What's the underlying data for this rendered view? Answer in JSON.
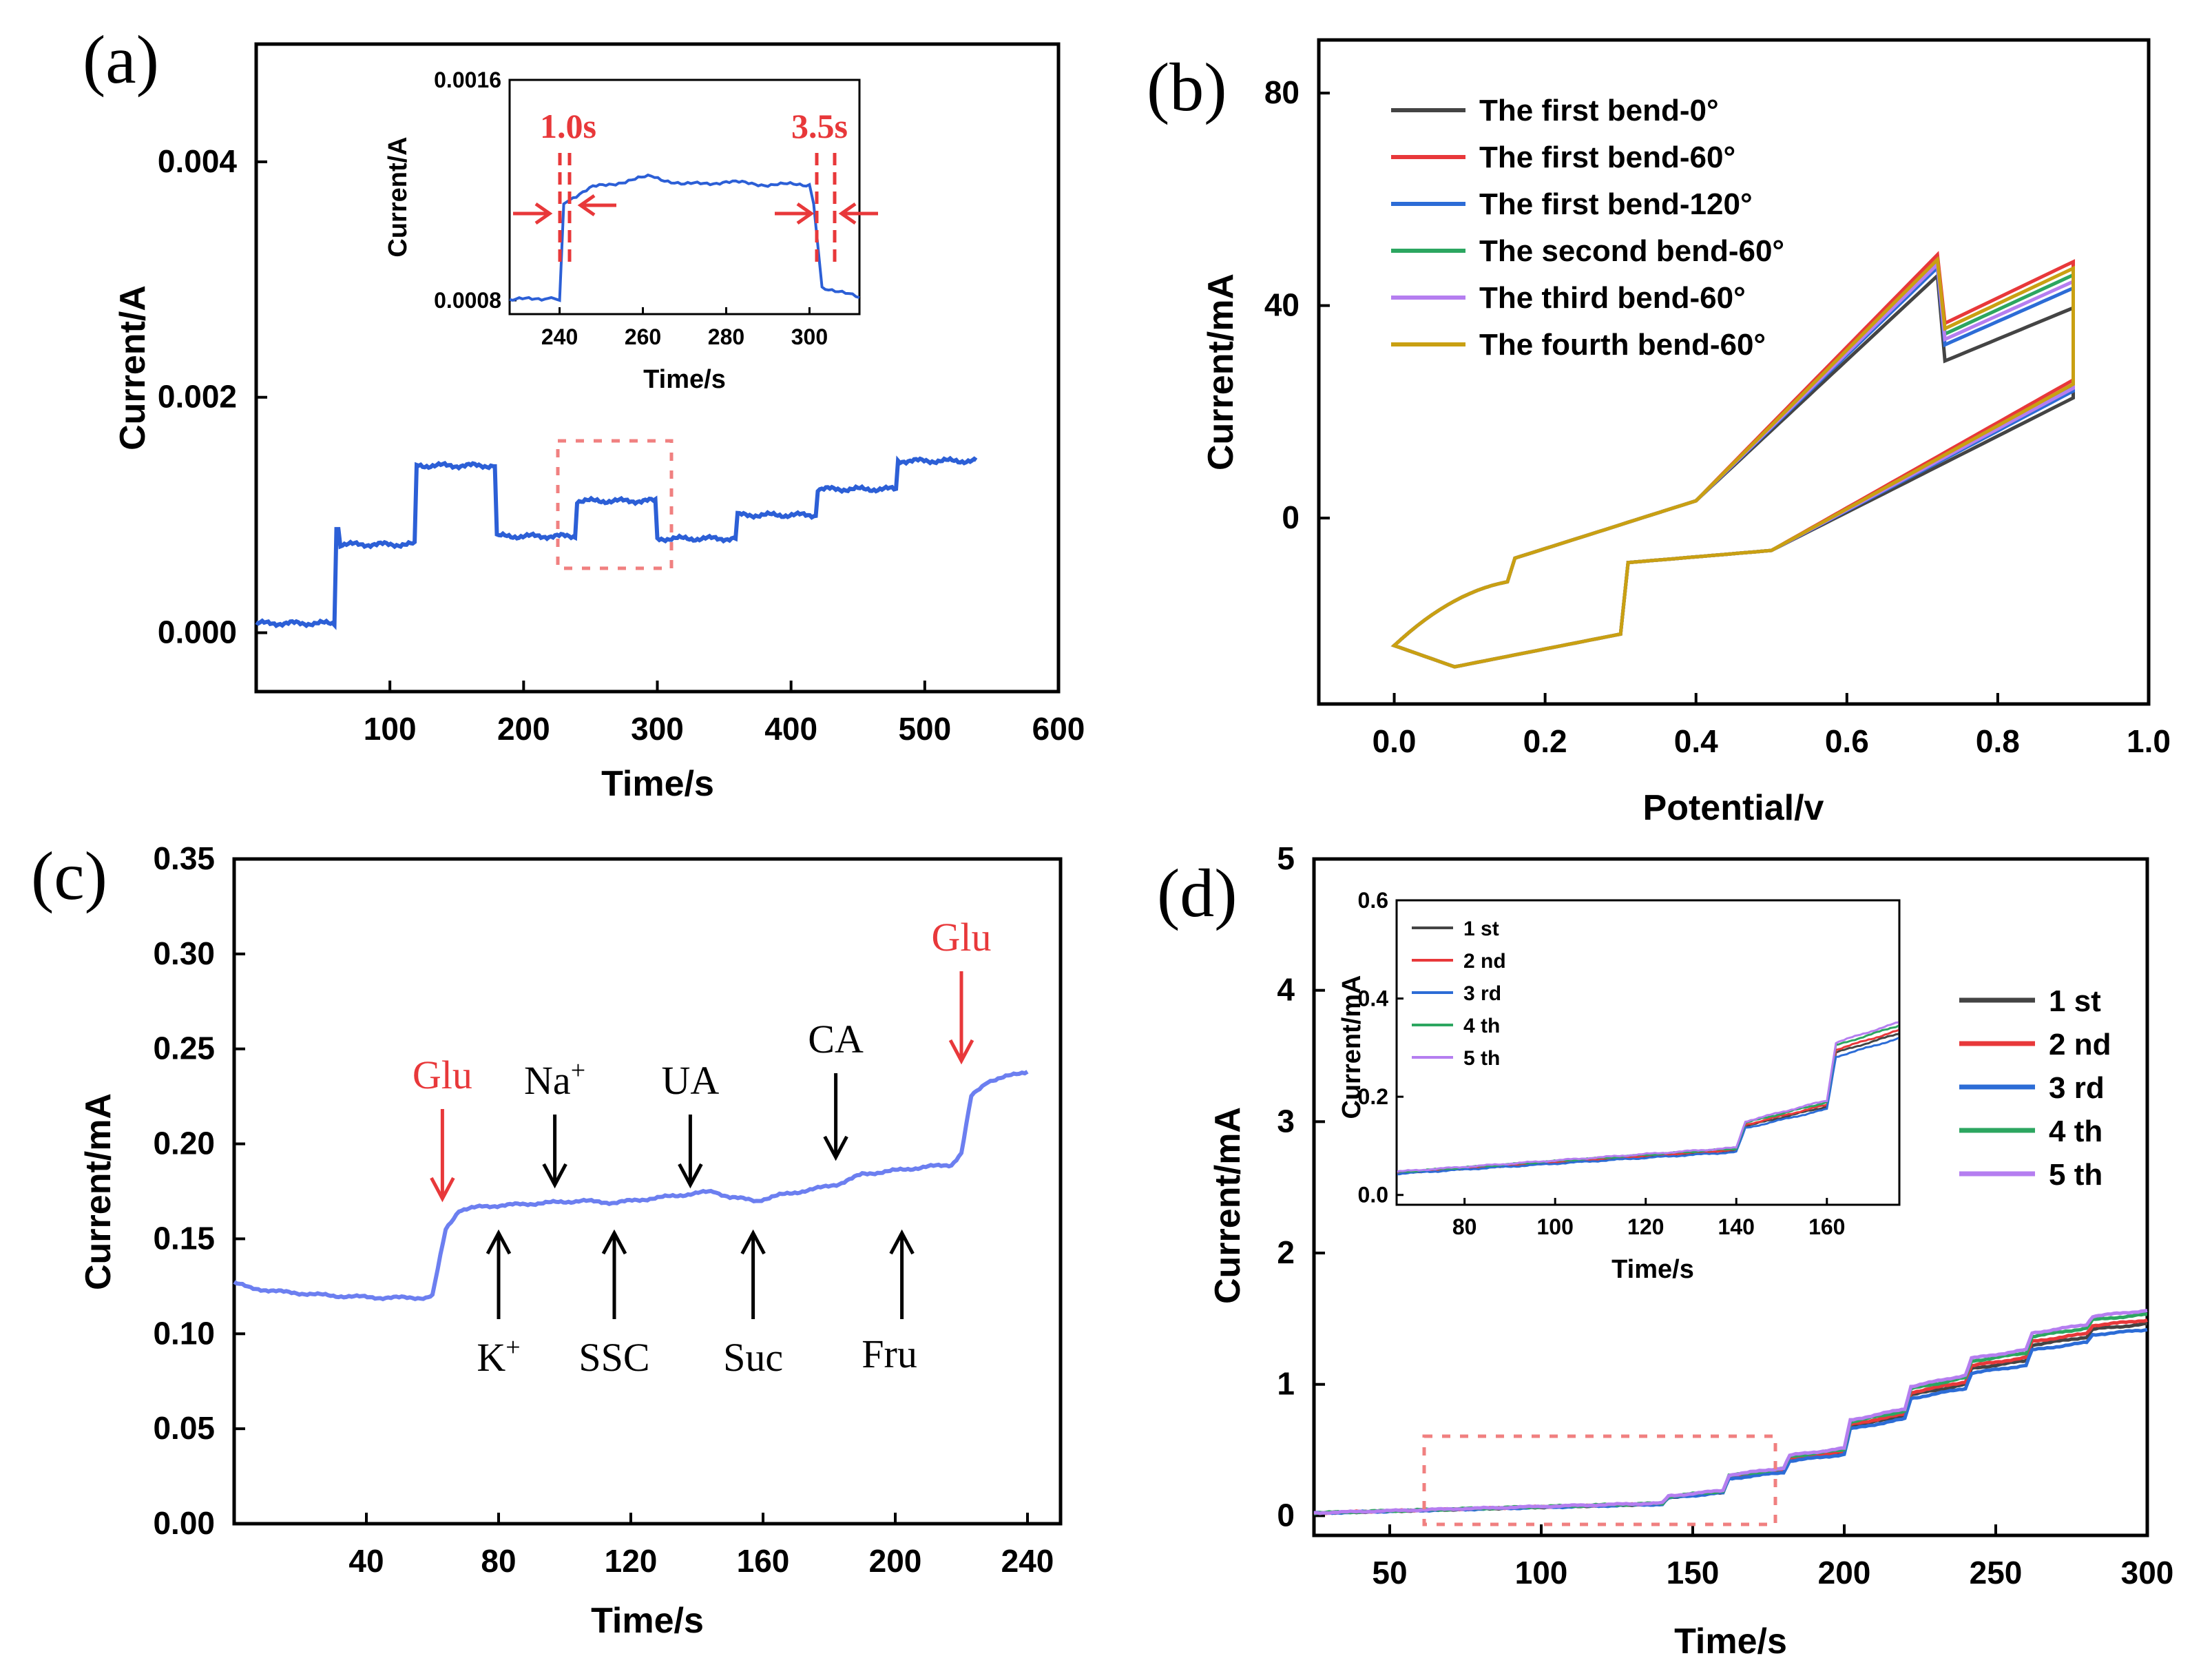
{
  "colors": {
    "blue": "#2c5fd6",
    "lightblue": "#6c7ff0",
    "red": "#e8383a",
    "dash": "#f08080",
    "series": [
      "#444444",
      "#e8383a",
      "#2c6cd6",
      "#2ca660",
      "#b57ef0",
      "#c9a012"
    ]
  },
  "chart_data": [
    {
      "panel": "(a)",
      "type": "line",
      "xlabel": "Time/s",
      "ylabel": "Current/A",
      "xlim": [
        0,
        600
      ],
      "ylim": [
        -0.0005,
        0.005
      ],
      "xticks": [
        "100",
        "200",
        "300",
        "400",
        "500",
        "600"
      ],
      "yticks": [
        "0.000",
        "0.002",
        "0.004"
      ],
      "steps": [
        [
          0,
          8e-05
        ],
        [
          60,
          0.00075
        ],
        [
          120,
          0.00142
        ],
        [
          180,
          0.00082
        ],
        [
          240,
          0.00112
        ],
        [
          300,
          0.0008
        ],
        [
          360,
          0.001
        ],
        [
          420,
          0.00122
        ],
        [
          480,
          0.00146
        ]
      ],
      "spike": [
        60,
        0.00088
      ],
      "x_end": 540,
      "inset": {
        "xlabel": "Time/s",
        "ylabel": "Current/A",
        "xlim": [
          228,
          312
        ],
        "ylim": [
          0.00075,
          0.0016
        ],
        "xticks": [
          "240",
          "260",
          "280",
          "300"
        ],
        "yticks": [
          "0.0008",
          "0.0016"
        ],
        "points": [
          [
            228,
            0.0008
          ],
          [
            238,
            0.00081
          ],
          [
            240,
            0.0008
          ],
          [
            241,
            0.00115
          ],
          [
            244,
            0.00118
          ],
          [
            248,
            0.00121
          ],
          [
            255,
            0.00123
          ],
          [
            262,
            0.00125
          ],
          [
            270,
            0.00122
          ],
          [
            280,
            0.00123
          ],
          [
            290,
            0.00122
          ],
          [
            300,
            0.00122
          ],
          [
            301,
            0.00115
          ],
          [
            303,
            0.00085
          ],
          [
            307,
            0.00083
          ],
          [
            312,
            0.00081
          ]
        ],
        "annotations": [
          "1.0s",
          "3.5s"
        ]
      }
    },
    {
      "panel": "(b)",
      "type": "line",
      "xlabel": "Potential/v",
      "ylabel": "Current/mA",
      "xlim": [
        -0.1,
        1.0
      ],
      "ylim": [
        -35,
        90
      ],
      "xticks": [
        "0.0",
        "0.2",
        "0.4",
        "0.6",
        "0.8",
        "1.0"
      ],
      "yticks": [
        "0",
        "40",
        "80"
      ],
      "series": [
        {
          "name": "The first bend-0°",
          "amp": 0.92,
          "bump": 29
        },
        {
          "name": "The first bend-60°",
          "amp": 1.05,
          "bump": 36
        },
        {
          "name": "The first bend-120°",
          "amp": 0.97,
          "bump": 32
        },
        {
          "name": "The second bend-60°",
          "amp": 1.0,
          "bump": 34
        },
        {
          "name": "The third bend-60°",
          "amp": 0.99,
          "bump": 33
        },
        {
          "name": "The fourth bend-60°",
          "amp": 1.02,
          "bump": 35
        }
      ]
    },
    {
      "panel": "(c)",
      "type": "line",
      "xlabel": "Time/s",
      "ylabel": "Current/mA",
      "xlim": [
        0,
        250
      ],
      "ylim": [
        0,
        0.35
      ],
      "xticks": [
        "40",
        "80",
        "120",
        "160",
        "200",
        "240"
      ],
      "yticks": [
        "0.00",
        "0.05",
        "0.10",
        "0.15",
        "0.20",
        "0.25",
        "0.30",
        "0.35"
      ],
      "points": [
        [
          0,
          0.127
        ],
        [
          5,
          0.124
        ],
        [
          15,
          0.122
        ],
        [
          30,
          0.12
        ],
        [
          45,
          0.119
        ],
        [
          58,
          0.119
        ],
        [
          60,
          0.12
        ],
        [
          64,
          0.155
        ],
        [
          68,
          0.165
        ],
        [
          75,
          0.167
        ],
        [
          85,
          0.168
        ],
        [
          95,
          0.169
        ],
        [
          105,
          0.17
        ],
        [
          115,
          0.169
        ],
        [
          125,
          0.171
        ],
        [
          135,
          0.173
        ],
        [
          145,
          0.175
        ],
        [
          150,
          0.172
        ],
        [
          158,
          0.17
        ],
        [
          165,
          0.173
        ],
        [
          175,
          0.176
        ],
        [
          183,
          0.179
        ],
        [
          190,
          0.184
        ],
        [
          200,
          0.186
        ],
        [
          210,
          0.188
        ],
        [
          217,
          0.189
        ],
        [
          220,
          0.195
        ],
        [
          223,
          0.225
        ],
        [
          228,
          0.233
        ],
        [
          235,
          0.236
        ],
        [
          240,
          0.238
        ]
      ],
      "annotations": [
        {
          "label": "Glu",
          "x": 63,
          "dir": "down",
          "color": "red"
        },
        {
          "label": "Na+",
          "x": 97,
          "dir": "down",
          "color": "black"
        },
        {
          "label": "UA",
          "x": 138,
          "dir": "down",
          "color": "black"
        },
        {
          "label": "CA",
          "x": 182,
          "dir": "down",
          "color": "black"
        },
        {
          "label": "Glu",
          "x": 220,
          "dir": "down",
          "color": "red"
        },
        {
          "label": "K+",
          "x": 80,
          "dir": "up",
          "color": "black"
        },
        {
          "label": "SSC",
          "x": 115,
          "dir": "up",
          "color": "black"
        },
        {
          "label": "Suc",
          "x": 157,
          "dir": "up",
          "color": "black"
        },
        {
          "label": "Fru",
          "x": 202,
          "dir": "up",
          "color": "black"
        }
      ],
      "ion_text": {
        "na": "Na",
        "k": "K",
        "sup": "+"
      }
    },
    {
      "panel": "(d)",
      "type": "line",
      "xlabel": "Time/s",
      "ylabel": "Current/mA",
      "xlim": [
        25,
        300
      ],
      "ylim": [
        -0.15,
        5
      ],
      "xticks": [
        "50",
        "100",
        "150",
        "200",
        "250",
        "300"
      ],
      "yticks": [
        "0",
        "1",
        "2",
        "3",
        "4",
        "5"
      ],
      "series_names": [
        "1 st",
        "2 nd",
        "3 rd",
        "4 th",
        "5 th"
      ],
      "base_points": [
        [
          25,
          0.02
        ],
        [
          140,
          0.09
        ],
        [
          142,
          0.14
        ],
        [
          160,
          0.18
        ],
        [
          162,
          0.29
        ],
        [
          180,
          0.34
        ],
        [
          182,
          0.43
        ],
        [
          200,
          0.48
        ],
        [
          202,
          0.68
        ],
        [
          220,
          0.76
        ],
        [
          222,
          0.92
        ],
        [
          240,
          1.0
        ],
        [
          242,
          1.12
        ],
        [
          260,
          1.18
        ],
        [
          262,
          1.3
        ],
        [
          280,
          1.36
        ],
        [
          282,
          1.42
        ],
        [
          300,
          1.46
        ]
      ],
      "scale": [
        1.0,
        1.02,
        0.97,
        1.05,
        1.07
      ],
      "inset": {
        "xlabel": "Time/s",
        "ylabel": "Current/mA",
        "xlim": [
          65,
          176
        ],
        "ylim": [
          -0.02,
          0.6
        ],
        "xticks": [
          "80",
          "100",
          "120",
          "140",
          "160"
        ],
        "yticks": [
          "0.0",
          "0.2",
          "0.4",
          "0.6"
        ]
      }
    }
  ]
}
